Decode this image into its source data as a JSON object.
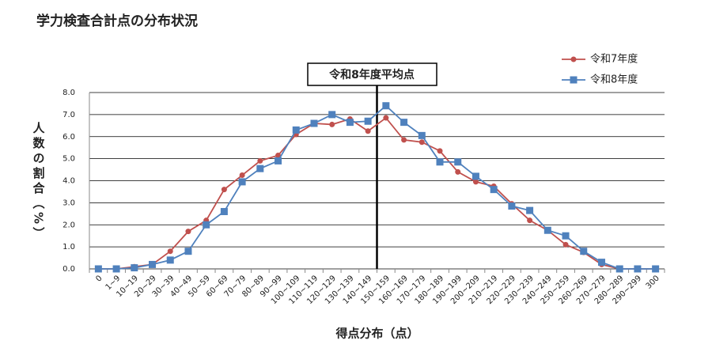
{
  "chart_data": {
    "type": "line",
    "title": "学力検査合計点の分布状況",
    "x_label": "得点分布（点）",
    "y_label": "人数の割合（%）",
    "annotation": "令和8年度平均点",
    "categories": [
      "0",
      "1~9",
      "10~19",
      "20~29",
      "30~39",
      "40~49",
      "50~59",
      "60~69",
      "70~79",
      "80~89",
      "90~99",
      "100~109",
      "110~119",
      "120~129",
      "130~139",
      "140~149",
      "150~159",
      "160~169",
      "170~179",
      "180~189",
      "190~199",
      "200~209",
      "210~219",
      "220~229",
      "230~239",
      "240~249",
      "250~259",
      "260~269",
      "270~279",
      "280~289",
      "290~299",
      "300"
    ],
    "series": [
      {
        "name": "令和7年度",
        "color": "#c0504d",
        "marker": "circle",
        "values": [
          0,
          0,
          0.1,
          0.2,
          0.8,
          1.7,
          2.2,
          3.6,
          4.25,
          4.9,
          5.15,
          6.1,
          6.6,
          6.55,
          6.8,
          6.25,
          6.85,
          5.85,
          5.75,
          5.35,
          4.4,
          3.95,
          3.75,
          2.95,
          2.2,
          1.75,
          1.1,
          0.75,
          0.2,
          0,
          0,
          0
        ]
      },
      {
        "name": "令和8年度",
        "color": "#4f81bd",
        "marker": "square",
        "values": [
          0,
          0,
          0.05,
          0.2,
          0.4,
          0.8,
          2.0,
          2.6,
          3.95,
          4.55,
          4.9,
          6.3,
          6.6,
          7.0,
          6.65,
          6.7,
          7.4,
          6.65,
          6.05,
          4.85,
          4.85,
          4.2,
          3.6,
          2.85,
          2.65,
          1.75,
          1.5,
          0.8,
          0.3,
          0,
          0,
          0
        ]
      }
    ],
    "ylim": [
      0,
      8
    ],
    "yticks": [
      {
        "value": 0,
        "label": "0.0"
      },
      {
        "value": 1,
        "label": "1.0"
      },
      {
        "value": 2,
        "label": "2.0"
      },
      {
        "value": 3,
        "label": "3.0"
      },
      {
        "value": 4,
        "label": "4.0"
      },
      {
        "value": 5,
        "label": "5.0"
      },
      {
        "value": 6,
        "label": "6.0"
      },
      {
        "value": 7,
        "label": "7.0"
      },
      {
        "value": 8,
        "label": "8.0"
      }
    ],
    "grid": true,
    "legend": "top-right"
  }
}
